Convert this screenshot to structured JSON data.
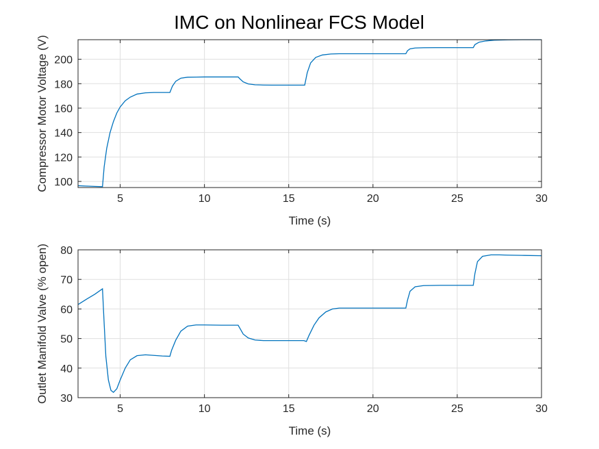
{
  "title": "IMC on Nonlinear FCS Model",
  "chart_data": [
    {
      "type": "line",
      "xlabel": "Time (s)",
      "ylabel": "Compressor Motor Voltage (V)",
      "xlim": [
        2.5,
        30
      ],
      "ylim": [
        95,
        216
      ],
      "xticks": [
        5,
        10,
        15,
        20,
        25,
        30
      ],
      "yticks": [
        100,
        120,
        140,
        160,
        180,
        200
      ],
      "grid": true,
      "color": "#0072BD",
      "series": [
        {
          "x": [
            2.5,
            3.0,
            3.5,
            3.95,
            4.05,
            4.2,
            4.4,
            4.6,
            4.8,
            5.0,
            5.3,
            5.6,
            6.0,
            6.5,
            7.0,
            7.5,
            7.95,
            8.1,
            8.3,
            8.6,
            9.0,
            9.5,
            10.0,
            11.0,
            12.0,
            12.1,
            12.3,
            12.6,
            13.0,
            13.5,
            14.0,
            15.0,
            15.95,
            16.1,
            16.3,
            16.6,
            17.0,
            17.5,
            18.0,
            19.0,
            20.0,
            21.0,
            21.95,
            22.05,
            22.2,
            22.5,
            23.0,
            24.0,
            25.0,
            25.95,
            26.05,
            26.3,
            26.7,
            27.2,
            28.0,
            29.0,
            30.0
          ],
          "values": [
            96.5,
            96.2,
            95.9,
            95.7,
            112,
            127,
            140,
            149,
            156,
            161,
            166,
            169,
            171.5,
            172.5,
            172.8,
            172.8,
            172.8,
            178,
            182,
            184.5,
            185.3,
            185.4,
            185.5,
            185.5,
            185.5,
            184,
            181.5,
            179.8,
            179.1,
            178.9,
            178.8,
            178.8,
            178.8,
            189,
            197,
            201.5,
            203.5,
            204.3,
            204.5,
            204.5,
            204.5,
            204.5,
            204.5,
            207,
            208.5,
            209.2,
            209.4,
            209.5,
            209.5,
            209.5,
            212,
            214,
            215,
            215.6,
            215.9,
            216,
            216
          ]
        }
      ]
    },
    {
      "type": "line",
      "xlabel": "Time (s)",
      "ylabel": "Outlet Manifold Valve (% open)",
      "xlim": [
        2.5,
        30
      ],
      "ylim": [
        30,
        80
      ],
      "xticks": [
        5,
        10,
        15,
        20,
        25,
        30
      ],
      "yticks": [
        30,
        40,
        50,
        60,
        70,
        80
      ],
      "grid": true,
      "color": "#0072BD",
      "series": [
        {
          "x": [
            2.5,
            3.0,
            3.5,
            3.95,
            4.05,
            4.15,
            4.3,
            4.45,
            4.6,
            4.8,
            5.0,
            5.3,
            5.6,
            6.0,
            6.5,
            7.0,
            7.5,
            7.95,
            8.05,
            8.3,
            8.6,
            9.0,
            9.5,
            10.0,
            11.0,
            12.0,
            12.1,
            12.3,
            12.6,
            13.0,
            13.5,
            14.0,
            15.0,
            15.9,
            16.05,
            16.2,
            16.5,
            16.8,
            17.2,
            17.6,
            18.0,
            19.0,
            20.0,
            21.0,
            21.95,
            22.05,
            22.2,
            22.5,
            23.0,
            24.0,
            25.0,
            25.95,
            26.05,
            26.2,
            26.5,
            27.0,
            27.5,
            28.0,
            29.0,
            30.0
          ],
          "values": [
            61.5,
            63.3,
            65.0,
            66.8,
            55,
            44,
            36,
            32.5,
            31.8,
            33,
            36,
            40,
            42.8,
            44.2,
            44.5,
            44.3,
            44.1,
            44.0,
            46,
            49.5,
            52.5,
            54.2,
            54.6,
            54.6,
            54.5,
            54.5,
            53.5,
            51.5,
            50.2,
            49.5,
            49.3,
            49.3,
            49.3,
            49.3,
            49.0,
            51,
            54.5,
            57,
            59,
            60.0,
            60.3,
            60.3,
            60.3,
            60.3,
            60.3,
            63,
            66,
            67.5,
            67.9,
            68.0,
            68.0,
            68.0,
            72,
            76,
            77.8,
            78.3,
            78.3,
            78.2,
            78.1,
            78.0
          ]
        }
      ]
    }
  ]
}
